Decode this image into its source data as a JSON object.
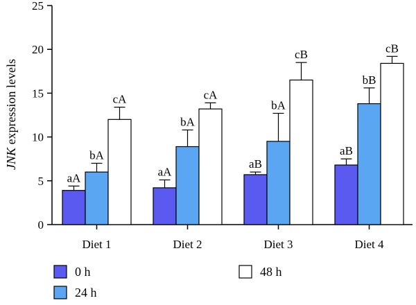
{
  "chart_data": {
    "type": "bar",
    "ylabel_italic": "JNK",
    "ylabel_rest": " expression levels",
    "xlabel": "",
    "ylim": [
      0,
      25
    ],
    "yticks": [
      0,
      5,
      10,
      15,
      20,
      25
    ],
    "grid": false,
    "legend_position": "bottom",
    "categories": [
      "Diet 1",
      "Diet 2",
      "Diet 3",
      "Diet 4"
    ],
    "series": [
      {
        "name": "0 h",
        "color": "#5a5af0",
        "values": [
          3.9,
          4.2,
          5.7,
          6.8
        ],
        "errors": [
          0.5,
          0.9,
          0.3,
          0.7
        ],
        "labels": [
          "aA",
          "aA",
          "aB",
          "aB"
        ]
      },
      {
        "name": "24 h",
        "color": "#5aa6f2",
        "values": [
          6.0,
          8.9,
          9.5,
          13.8
        ],
        "errors": [
          1.0,
          1.9,
          3.2,
          1.8
        ],
        "labels": [
          "bA",
          "bA",
          "bA",
          "bB"
        ]
      },
      {
        "name": "48 h",
        "color": "#ffffff",
        "values": [
          12.0,
          13.2,
          16.5,
          18.4
        ],
        "errors": [
          1.4,
          0.7,
          2.0,
          0.8
        ],
        "labels": [
          "cA",
          "cA",
          "cB",
          "cB"
        ]
      }
    ]
  }
}
